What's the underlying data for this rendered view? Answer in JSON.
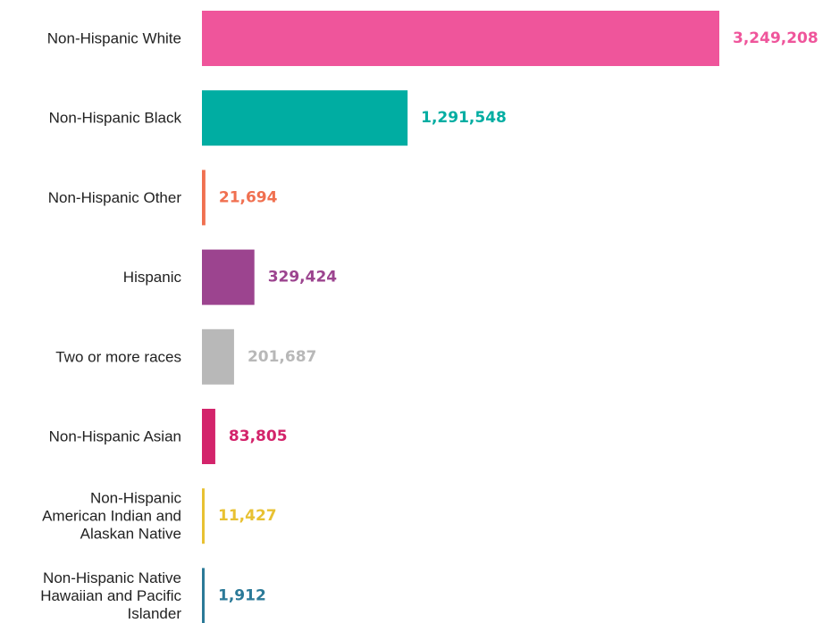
{
  "chart_data": {
    "type": "bar",
    "orientation": "horizontal",
    "categories": [
      [
        "Non-Hispanic White"
      ],
      [
        "Non-Hispanic Black"
      ],
      [
        "Non-Hispanic Other"
      ],
      [
        "Hispanic"
      ],
      [
        "Two or more races"
      ],
      [
        "Non-Hispanic Asian"
      ],
      [
        "Non-Hispanic",
        "American Indian and",
        "Alaskan Native"
      ],
      [
        "Non-Hispanic Native",
        "Hawaiian and Pacific",
        "Islander"
      ]
    ],
    "values": [
      3249208,
      1291548,
      21694,
      329424,
      201687,
      83805,
      11427,
      1912
    ],
    "value_labels": [
      "3,249,208",
      "1,291,548",
      "21,694",
      "329,424",
      "201,687",
      "83,805",
      "11,427",
      "1,912"
    ],
    "colors": [
      "#ef559b",
      "#00ada2",
      "#f07050",
      "#9c448f",
      "#b8b8b8",
      "#d3246b",
      "#e8c132",
      "#2b7a98"
    ],
    "xlim": [
      0,
      3249208
    ],
    "grid": false,
    "legend": "none"
  }
}
